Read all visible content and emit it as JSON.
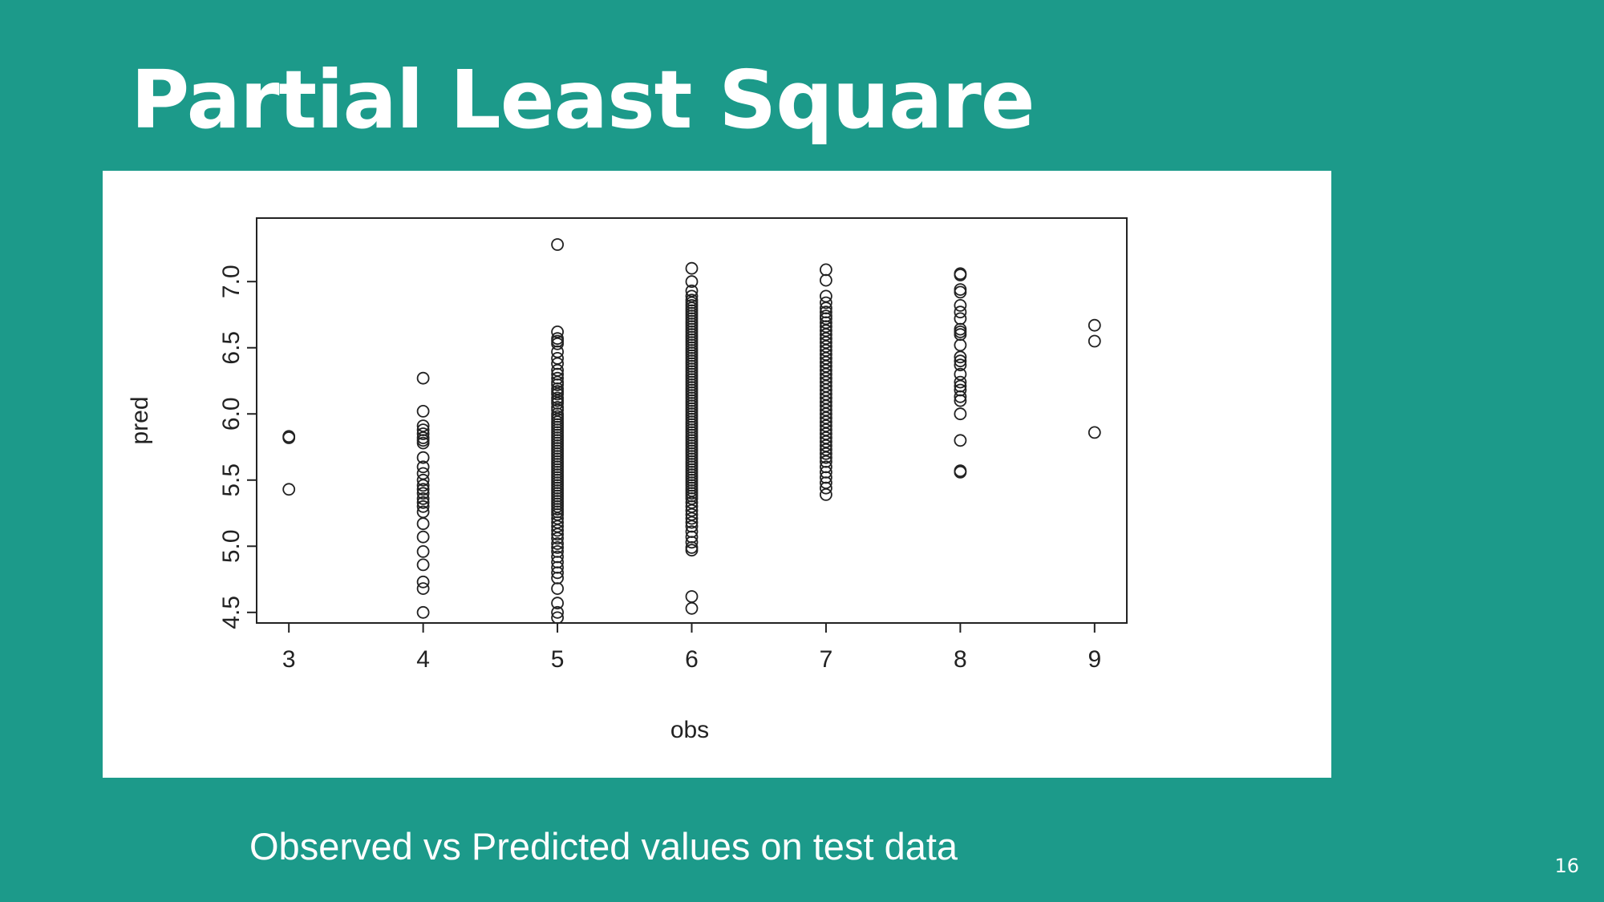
{
  "slide": {
    "title": "Partial Least Square",
    "caption": "Observed vs Predicted values on test data",
    "page_number": "16"
  },
  "colors": {
    "background": "#1c9a8a",
    "title_text": "#ffffff",
    "figure_background": "#ffffff",
    "plot_ink": "#222222"
  },
  "chart_data": {
    "type": "scatter",
    "xlabel": "obs",
    "ylabel": "pred",
    "xlim": [
      2.76,
      9.24
    ],
    "ylim": [
      4.42,
      7.48
    ],
    "x_ticks": [
      3,
      4,
      5,
      6,
      7,
      8,
      9
    ],
    "y_ticks": [
      4.5,
      5.0,
      5.5,
      6.0,
      6.5,
      7.0
    ],
    "x_tick_labels": [
      "3",
      "4",
      "5",
      "6",
      "7",
      "8",
      "9"
    ],
    "y_tick_labels": [
      "4.5",
      "5.0",
      "5.5",
      "6.0",
      "6.5",
      "7.0"
    ],
    "grid": false,
    "marker": "open-circle",
    "series": [
      {
        "points": [
          [
            3,
            5.82
          ],
          [
            3,
            5.83
          ],
          [
            3,
            5.43
          ],
          [
            4,
            6.27
          ],
          [
            4,
            6.02
          ],
          [
            4,
            5.91
          ],
          [
            4,
            5.88
          ],
          [
            4,
            5.85
          ],
          [
            4,
            5.82
          ],
          [
            4,
            5.8
          ],
          [
            4,
            5.78
          ],
          [
            4,
            5.67
          ],
          [
            4,
            5.6
          ],
          [
            4,
            5.55
          ],
          [
            4,
            5.5
          ],
          [
            4,
            5.46
          ],
          [
            4,
            5.43
          ],
          [
            4,
            5.4
          ],
          [
            4,
            5.36
          ],
          [
            4,
            5.33
          ],
          [
            4,
            5.3
          ],
          [
            4,
            5.26
          ],
          [
            4,
            5.17
          ],
          [
            4,
            5.07
          ],
          [
            4,
            4.96
          ],
          [
            4,
            4.86
          ],
          [
            4,
            4.73
          ],
          [
            4,
            4.68
          ],
          [
            4,
            4.5
          ],
          [
            5,
            7.28
          ],
          [
            5,
            6.62
          ],
          [
            5,
            6.57
          ],
          [
            5,
            6.55
          ],
          [
            5,
            6.53
          ],
          [
            5,
            6.47
          ],
          [
            5,
            6.42
          ],
          [
            5,
            6.38
          ],
          [
            5,
            6.33
          ],
          [
            5,
            6.3
          ],
          [
            5,
            6.27
          ],
          [
            5,
            6.24
          ],
          [
            5,
            6.22
          ],
          [
            5,
            6.19
          ],
          [
            5,
            6.17
          ],
          [
            5,
            6.15
          ],
          [
            5,
            6.12
          ],
          [
            5,
            6.1
          ],
          [
            5,
            6.08
          ],
          [
            5,
            6.05
          ],
          [
            5,
            6.03
          ],
          [
            5,
            6.0
          ],
          [
            5,
            5.98
          ],
          [
            5,
            5.96
          ],
          [
            5,
            5.94
          ],
          [
            5,
            5.92
          ],
          [
            5,
            5.9
          ],
          [
            5,
            5.88
          ],
          [
            5,
            5.86
          ],
          [
            5,
            5.84
          ],
          [
            5,
            5.82
          ],
          [
            5,
            5.8
          ],
          [
            5,
            5.78
          ],
          [
            5,
            5.76
          ],
          [
            5,
            5.74
          ],
          [
            5,
            5.72
          ],
          [
            5,
            5.7
          ],
          [
            5,
            5.68
          ],
          [
            5,
            5.66
          ],
          [
            5,
            5.64
          ],
          [
            5,
            5.62
          ],
          [
            5,
            5.6
          ],
          [
            5,
            5.58
          ],
          [
            5,
            5.56
          ],
          [
            5,
            5.54
          ],
          [
            5,
            5.52
          ],
          [
            5,
            5.5
          ],
          [
            5,
            5.48
          ],
          [
            5,
            5.46
          ],
          [
            5,
            5.44
          ],
          [
            5,
            5.42
          ],
          [
            5,
            5.4
          ],
          [
            5,
            5.38
          ],
          [
            5,
            5.36
          ],
          [
            5,
            5.34
          ],
          [
            5,
            5.32
          ],
          [
            5,
            5.3
          ],
          [
            5,
            5.28
          ],
          [
            5,
            5.26
          ],
          [
            5,
            5.24
          ],
          [
            5,
            5.21
          ],
          [
            5,
            5.18
          ],
          [
            5,
            5.15
          ],
          [
            5,
            5.12
          ],
          [
            5,
            5.09
          ],
          [
            5,
            5.06
          ],
          [
            5,
            5.02
          ],
          [
            5,
            4.99
          ],
          [
            5,
            4.96
          ],
          [
            5,
            4.92
          ],
          [
            5,
            4.88
          ],
          [
            5,
            4.84
          ],
          [
            5,
            4.8
          ],
          [
            5,
            4.76
          ],
          [
            5,
            4.68
          ],
          [
            5,
            4.57
          ],
          [
            5,
            4.5
          ],
          [
            5,
            4.46
          ],
          [
            6,
            7.1
          ],
          [
            6,
            7.0
          ],
          [
            6,
            6.93
          ],
          [
            6,
            6.89
          ],
          [
            6,
            6.86
          ],
          [
            6,
            6.84
          ],
          [
            6,
            6.82
          ],
          [
            6,
            6.8
          ],
          [
            6,
            6.78
          ],
          [
            6,
            6.76
          ],
          [
            6,
            6.74
          ],
          [
            6,
            6.72
          ],
          [
            6,
            6.7
          ],
          [
            6,
            6.68
          ],
          [
            6,
            6.66
          ],
          [
            6,
            6.64
          ],
          [
            6,
            6.62
          ],
          [
            6,
            6.6
          ],
          [
            6,
            6.58
          ],
          [
            6,
            6.56
          ],
          [
            6,
            6.54
          ],
          [
            6,
            6.52
          ],
          [
            6,
            6.5
          ],
          [
            6,
            6.48
          ],
          [
            6,
            6.46
          ],
          [
            6,
            6.44
          ],
          [
            6,
            6.42
          ],
          [
            6,
            6.4
          ],
          [
            6,
            6.38
          ],
          [
            6,
            6.36
          ],
          [
            6,
            6.34
          ],
          [
            6,
            6.32
          ],
          [
            6,
            6.3
          ],
          [
            6,
            6.28
          ],
          [
            6,
            6.26
          ],
          [
            6,
            6.24
          ],
          [
            6,
            6.22
          ],
          [
            6,
            6.2
          ],
          [
            6,
            6.18
          ],
          [
            6,
            6.16
          ],
          [
            6,
            6.14
          ],
          [
            6,
            6.12
          ],
          [
            6,
            6.1
          ],
          [
            6,
            6.08
          ],
          [
            6,
            6.06
          ],
          [
            6,
            6.04
          ],
          [
            6,
            6.02
          ],
          [
            6,
            6.0
          ],
          [
            6,
            5.98
          ],
          [
            6,
            5.96
          ],
          [
            6,
            5.94
          ],
          [
            6,
            5.92
          ],
          [
            6,
            5.9
          ],
          [
            6,
            5.88
          ],
          [
            6,
            5.86
          ],
          [
            6,
            5.84
          ],
          [
            6,
            5.82
          ],
          [
            6,
            5.8
          ],
          [
            6,
            5.78
          ],
          [
            6,
            5.76
          ],
          [
            6,
            5.74
          ],
          [
            6,
            5.72
          ],
          [
            6,
            5.7
          ],
          [
            6,
            5.68
          ],
          [
            6,
            5.66
          ],
          [
            6,
            5.64
          ],
          [
            6,
            5.62
          ],
          [
            6,
            5.6
          ],
          [
            6,
            5.58
          ],
          [
            6,
            5.56
          ],
          [
            6,
            5.54
          ],
          [
            6,
            5.52
          ],
          [
            6,
            5.5
          ],
          [
            6,
            5.48
          ],
          [
            6,
            5.46
          ],
          [
            6,
            5.44
          ],
          [
            6,
            5.42
          ],
          [
            6,
            5.4
          ],
          [
            6,
            5.38
          ],
          [
            6,
            5.36
          ],
          [
            6,
            5.33
          ],
          [
            6,
            5.3
          ],
          [
            6,
            5.27
          ],
          [
            6,
            5.24
          ],
          [
            6,
            5.21
          ],
          [
            6,
            5.18
          ],
          [
            6,
            5.15
          ],
          [
            6,
            5.11
          ],
          [
            6,
            5.07
          ],
          [
            6,
            5.03
          ],
          [
            6,
            4.99
          ],
          [
            6,
            4.97
          ],
          [
            6,
            4.62
          ],
          [
            6,
            4.53
          ],
          [
            7,
            7.09
          ],
          [
            7,
            7.01
          ],
          [
            7,
            6.89
          ],
          [
            7,
            6.84
          ],
          [
            7,
            6.8
          ],
          [
            7,
            6.77
          ],
          [
            7,
            6.74
          ],
          [
            7,
            6.72
          ],
          [
            7,
            6.69
          ],
          [
            7,
            6.66
          ],
          [
            7,
            6.63
          ],
          [
            7,
            6.6
          ],
          [
            7,
            6.57
          ],
          [
            7,
            6.54
          ],
          [
            7,
            6.51
          ],
          [
            7,
            6.48
          ],
          [
            7,
            6.45
          ],
          [
            7,
            6.42
          ],
          [
            7,
            6.39
          ],
          [
            7,
            6.36
          ],
          [
            7,
            6.33
          ],
          [
            7,
            6.3
          ],
          [
            7,
            6.27
          ],
          [
            7,
            6.24
          ],
          [
            7,
            6.21
          ],
          [
            7,
            6.18
          ],
          [
            7,
            6.15
          ],
          [
            7,
            6.12
          ],
          [
            7,
            6.09
          ],
          [
            7,
            6.06
          ],
          [
            7,
            6.03
          ],
          [
            7,
            6.0
          ],
          [
            7,
            5.97
          ],
          [
            7,
            5.94
          ],
          [
            7,
            5.91
          ],
          [
            7,
            5.88
          ],
          [
            7,
            5.85
          ],
          [
            7,
            5.82
          ],
          [
            7,
            5.79
          ],
          [
            7,
            5.76
          ],
          [
            7,
            5.73
          ],
          [
            7,
            5.7
          ],
          [
            7,
            5.67
          ],
          [
            7,
            5.64
          ],
          [
            7,
            5.6
          ],
          [
            7,
            5.56
          ],
          [
            7,
            5.52
          ],
          [
            7,
            5.48
          ],
          [
            7,
            5.44
          ],
          [
            7,
            5.39
          ],
          [
            8,
            7.06
          ],
          [
            8,
            7.05
          ],
          [
            8,
            6.94
          ],
          [
            8,
            6.92
          ],
          [
            8,
            6.82
          ],
          [
            8,
            6.77
          ],
          [
            8,
            6.72
          ],
          [
            8,
            6.64
          ],
          [
            8,
            6.62
          ],
          [
            8,
            6.6
          ],
          [
            8,
            6.52
          ],
          [
            8,
            6.43
          ],
          [
            8,
            6.4
          ],
          [
            8,
            6.37
          ],
          [
            8,
            6.3
          ],
          [
            8,
            6.24
          ],
          [
            8,
            6.21
          ],
          [
            8,
            6.18
          ],
          [
            8,
            6.13
          ],
          [
            8,
            6.1
          ],
          [
            8,
            6.0
          ],
          [
            8,
            5.8
          ],
          [
            8,
            5.57
          ],
          [
            8,
            5.56
          ],
          [
            9,
            6.67
          ],
          [
            9,
            6.55
          ],
          [
            9,
            5.86
          ]
        ]
      }
    ]
  }
}
